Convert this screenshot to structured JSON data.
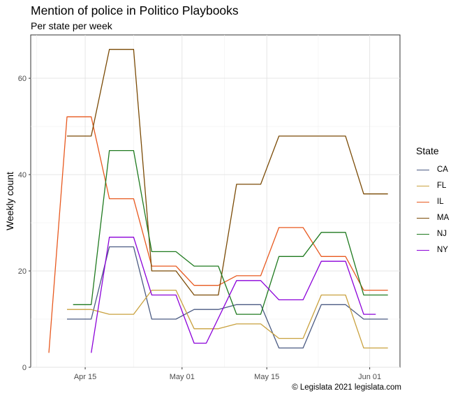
{
  "chart_data": {
    "type": "line",
    "title": "Mention of police in Politico Playbooks",
    "subtitle": "Per state per week",
    "xlabel": "",
    "ylabel": "Weekly count",
    "caption": "© Legislata 2021 legislata.com",
    "legend_title": "State",
    "legend_position": "right",
    "grid": true,
    "x_ticks": [
      "2021-04-15",
      "2021-05-01",
      "2021-05-15",
      "2021-06-01"
    ],
    "x_tick_labels": [
      "Apr 15",
      "May 01",
      "May 15",
      "Jun 01"
    ],
    "y_ticks": [
      0,
      20,
      40,
      60
    ],
    "xlim": [
      "2021-04-06",
      "2021-06-06"
    ],
    "ylim": [
      0,
      69
    ],
    "series": [
      {
        "name": "CA",
        "color": "#4a5a82",
        "points": [
          [
            "2021-04-12",
            10
          ],
          [
            "2021-04-16",
            10
          ],
          [
            "2021-04-19",
            25
          ],
          [
            "2021-04-23",
            25
          ],
          [
            "2021-04-26",
            10
          ],
          [
            "2021-04-30",
            10
          ],
          [
            "2021-05-03",
            12
          ],
          [
            "2021-05-07",
            12
          ],
          [
            "2021-05-10",
            13
          ],
          [
            "2021-05-14",
            13
          ],
          [
            "2021-05-17",
            4
          ],
          [
            "2021-05-21",
            4
          ],
          [
            "2021-05-24",
            13
          ],
          [
            "2021-05-28",
            13
          ],
          [
            "2021-05-31",
            10
          ],
          [
            "2021-06-04",
            10
          ]
        ]
      },
      {
        "name": "FL",
        "color": "#c9a13e",
        "points": [
          [
            "2021-04-12",
            12
          ],
          [
            "2021-04-16",
            12
          ],
          [
            "2021-04-19",
            11
          ],
          [
            "2021-04-23",
            11
          ],
          [
            "2021-04-26",
            16
          ],
          [
            "2021-04-30",
            16
          ],
          [
            "2021-05-03",
            8
          ],
          [
            "2021-05-07",
            8
          ],
          [
            "2021-05-10",
            9
          ],
          [
            "2021-05-14",
            9
          ],
          [
            "2021-05-17",
            6
          ],
          [
            "2021-05-21",
            6
          ],
          [
            "2021-05-24",
            15
          ],
          [
            "2021-05-28",
            15
          ],
          [
            "2021-05-31",
            4
          ],
          [
            "2021-06-04",
            4
          ]
        ]
      },
      {
        "name": "IL",
        "color": "#e8591f",
        "points": [
          [
            "2021-04-09",
            3
          ],
          [
            "2021-04-12",
            52
          ],
          [
            "2021-04-16",
            52
          ],
          [
            "2021-04-19",
            35
          ],
          [
            "2021-04-23",
            35
          ],
          [
            "2021-04-26",
            21
          ],
          [
            "2021-04-30",
            21
          ],
          [
            "2021-05-03",
            17
          ],
          [
            "2021-05-07",
            17
          ],
          [
            "2021-05-10",
            19
          ],
          [
            "2021-05-14",
            19
          ],
          [
            "2021-05-17",
            29
          ],
          [
            "2021-05-21",
            29
          ],
          [
            "2021-05-24",
            23
          ],
          [
            "2021-05-28",
            23
          ],
          [
            "2021-05-31",
            16
          ],
          [
            "2021-06-04",
            16
          ]
        ]
      },
      {
        "name": "MA",
        "color": "#7a4a05",
        "points": [
          [
            "2021-04-12",
            48
          ],
          [
            "2021-04-16",
            48
          ],
          [
            "2021-04-19",
            66
          ],
          [
            "2021-04-23",
            66
          ],
          [
            "2021-04-26",
            20
          ],
          [
            "2021-04-30",
            20
          ],
          [
            "2021-05-03",
            15
          ],
          [
            "2021-05-07",
            15
          ],
          [
            "2021-05-10",
            38
          ],
          [
            "2021-05-14",
            38
          ],
          [
            "2021-05-17",
            48
          ],
          [
            "2021-05-21",
            48
          ],
          [
            "2021-05-24",
            48
          ],
          [
            "2021-05-28",
            48
          ],
          [
            "2021-05-31",
            36
          ],
          [
            "2021-06-04",
            36
          ]
        ]
      },
      {
        "name": "NJ",
        "color": "#1f7a1f",
        "points": [
          [
            "2021-04-13",
            13
          ],
          [
            "2021-04-16",
            13
          ],
          [
            "2021-04-19",
            45
          ],
          [
            "2021-04-23",
            45
          ],
          [
            "2021-04-26",
            24
          ],
          [
            "2021-04-30",
            24
          ],
          [
            "2021-05-03",
            21
          ],
          [
            "2021-05-07",
            21
          ],
          [
            "2021-05-10",
            11
          ],
          [
            "2021-05-14",
            11
          ],
          [
            "2021-05-17",
            23
          ],
          [
            "2021-05-21",
            23
          ],
          [
            "2021-05-24",
            28
          ],
          [
            "2021-05-28",
            28
          ],
          [
            "2021-05-31",
            15
          ],
          [
            "2021-06-04",
            15
          ]
        ]
      },
      {
        "name": "NY",
        "color": "#8b00d9",
        "points": [
          [
            "2021-04-16",
            3
          ],
          [
            "2021-04-19",
            27
          ],
          [
            "2021-04-23",
            27
          ],
          [
            "2021-04-26",
            15
          ],
          [
            "2021-04-30",
            15
          ],
          [
            "2021-05-03",
            5
          ],
          [
            "2021-05-05",
            5
          ],
          [
            "2021-05-10",
            18
          ],
          [
            "2021-05-14",
            18
          ],
          [
            "2021-05-17",
            14
          ],
          [
            "2021-05-21",
            14
          ],
          [
            "2021-05-24",
            22
          ],
          [
            "2021-05-28",
            22
          ],
          [
            "2021-05-31",
            11
          ],
          [
            "2021-06-02",
            11
          ]
        ]
      }
    ]
  }
}
